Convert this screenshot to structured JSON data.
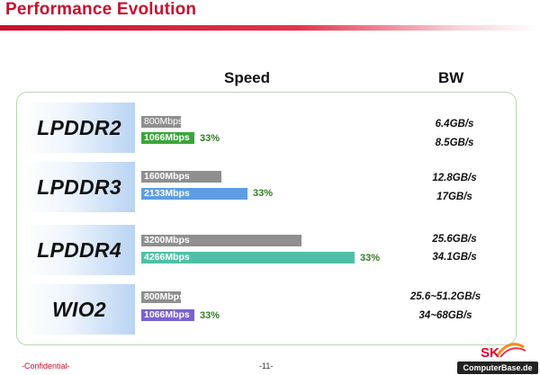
{
  "header": {
    "title": "Performance Evolution"
  },
  "columns": {
    "speed": "Speed",
    "bw": "BW"
  },
  "colors": {
    "title_red": "#c8102e",
    "old_bar": "#8f8f8f",
    "pct_green": "#2f7d22",
    "lpddr2_new": "#3aa63a",
    "lpddr3_new": "#5d9de3",
    "lpddr4_new": "#4fc0a6",
    "wio2_new": "#7a62d1"
  },
  "chart_data": {
    "type": "bar",
    "title": "Performance Evolution",
    "xlabel": "",
    "ylabel": "",
    "unit": "Mbps",
    "xlim": [
      0,
      4500
    ],
    "groups": [
      {
        "name": "LPDDR2",
        "bars": [
          {
            "label": "800Mbps",
            "value": 800,
            "bw": "6.4GB/s"
          },
          {
            "label": "1066Mbps",
            "value": 1066,
            "bw": "8.5GB/s"
          }
        ],
        "increase": "33%"
      },
      {
        "name": "LPDDR3",
        "bars": [
          {
            "label": "1600Mbps",
            "value": 1600,
            "bw": "12.8GB/s"
          },
          {
            "label": "2133Mbps",
            "value": 2133,
            "bw": "17GB/s"
          }
        ],
        "increase": "33%"
      },
      {
        "name": "LPDDR4",
        "bars": [
          {
            "label": "3200Mbps",
            "value": 3200,
            "bw": "25.6GB/s"
          },
          {
            "label": "4266Mbps",
            "value": 4266,
            "bw": "34.1GB/s"
          }
        ],
        "increase": "33%"
      },
      {
        "name": "WIO2",
        "bars": [
          {
            "label": "800Mbps",
            "value": 800,
            "bw": "25.6~51.2GB/s"
          },
          {
            "label": "1066Mbps",
            "value": 1066,
            "bw": "34~68GB/s"
          }
        ],
        "increase": "33%"
      }
    ]
  },
  "footer": {
    "confidential": "-Confidential-",
    "page": "-11-",
    "logo_text": "SK",
    "watermark": "ComputerBase.de"
  },
  "icons": {
    "logo": "sk-hynix-logo-icon"
  }
}
